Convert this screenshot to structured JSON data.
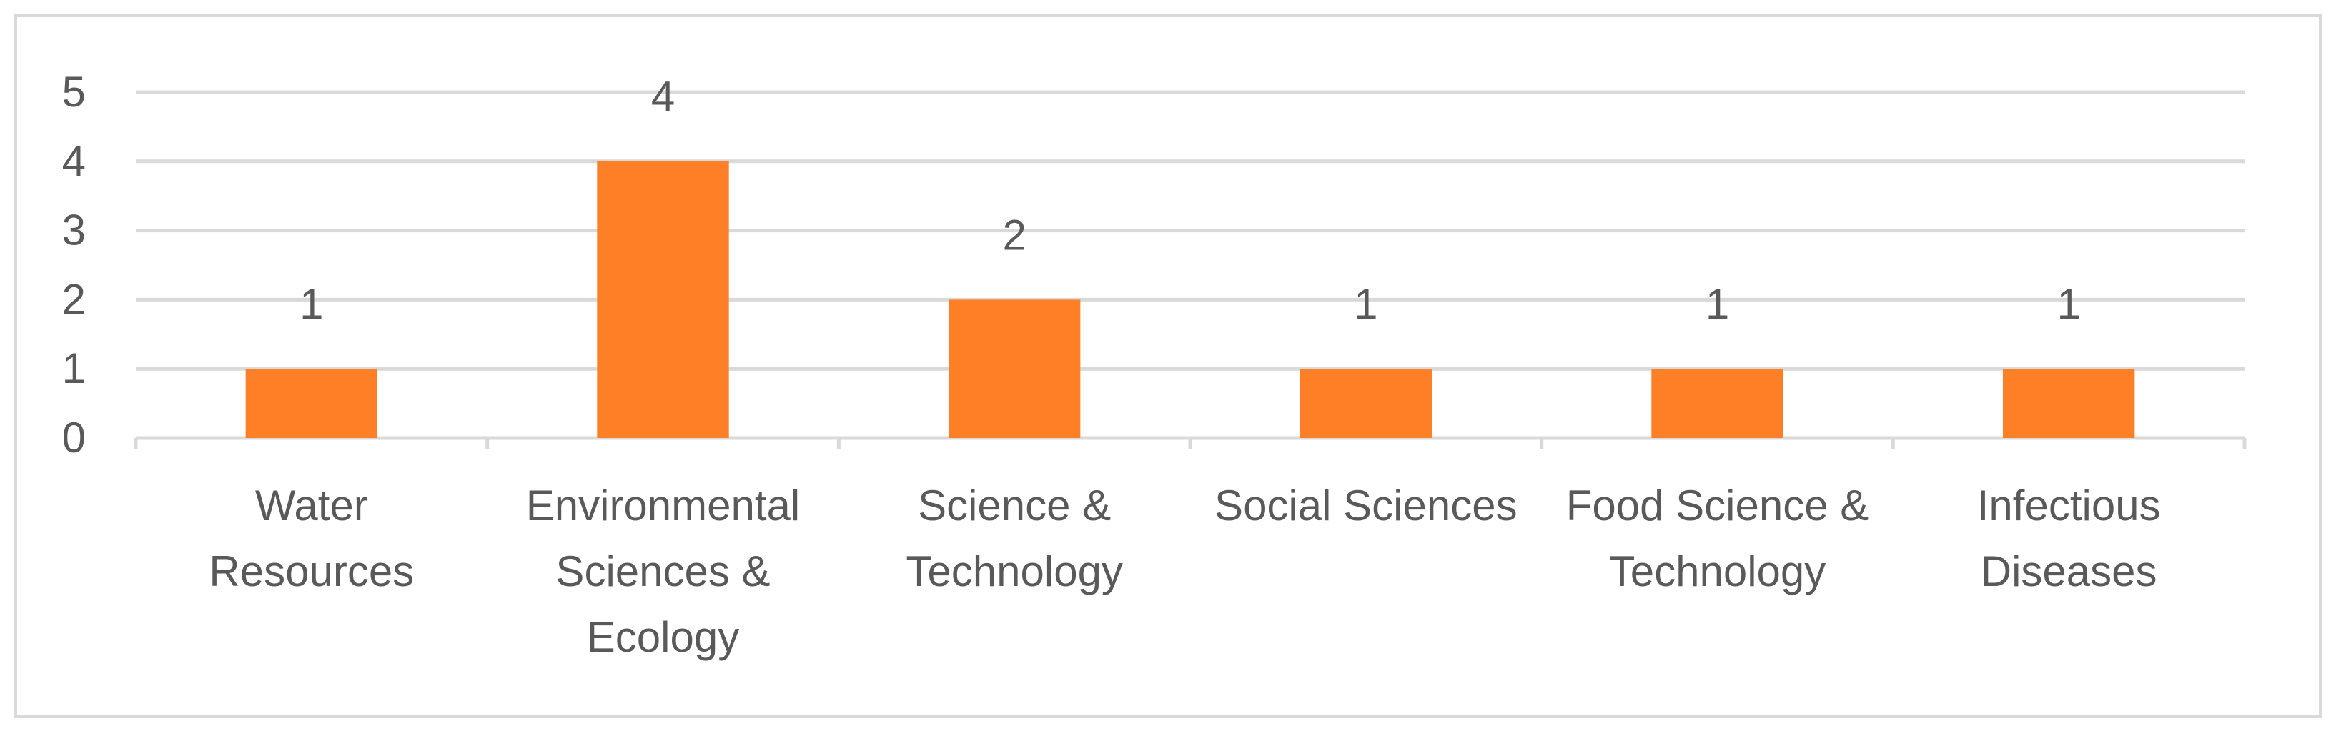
{
  "chart_data": {
    "type": "bar",
    "title": "",
    "xlabel": "",
    "ylabel": "",
    "categories": [
      [
        "Water",
        "Resources"
      ],
      [
        "Environmental",
        "Sciences &",
        "Ecology"
      ],
      [
        "Science &",
        "Technology"
      ],
      [
        "Social Sciences"
      ],
      [
        "Food Science &",
        "Technology"
      ],
      [
        "Infectious",
        "Diseases"
      ]
    ],
    "values": [
      1,
      4,
      2,
      1,
      1,
      1
    ],
    "data_labels": [
      "1",
      "4",
      "2",
      "1",
      "1",
      "1"
    ],
    "ylim": [
      0,
      5
    ],
    "yticks": [
      "0",
      "1",
      "2",
      "3",
      "4",
      "5"
    ],
    "grid": true,
    "legend": "none",
    "colors": {
      "bar": "#FF7F27",
      "grid": "#D9D9D9",
      "text": "#595959",
      "frame": "#D9D9D9"
    }
  }
}
